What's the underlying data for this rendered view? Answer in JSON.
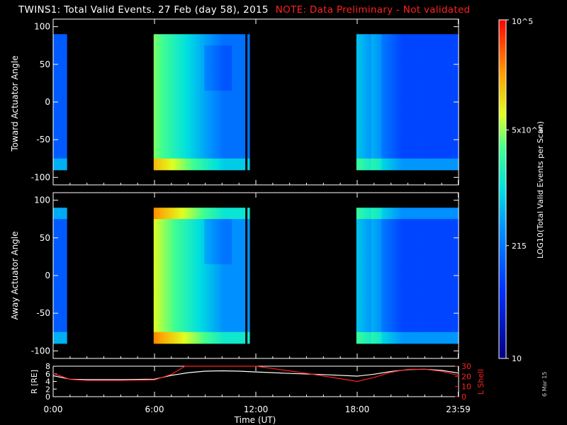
{
  "title": "TWINS1: Total Valid Events. 27 Feb (day  58), 2015",
  "note": "NOTE: Data Preliminary - Not validated",
  "stamp": "6 Mar 15",
  "colors": {
    "background": "#000000",
    "axes": "#ffffff",
    "note": "#ff2020",
    "r_line": "#ffffff",
    "lshell_line": "#ff2020"
  },
  "chart_data": [
    {
      "type": "heatmap",
      "panel": "top",
      "ylabel": "Toward Actuator Angle",
      "ylim": [
        -110,
        110
      ],
      "yticks": [
        100,
        50,
        0,
        -50,
        -100
      ],
      "xlim_hours": [
        0,
        24
      ],
      "coverage_hours": [
        [
          0.0,
          0.8
        ],
        [
          5.95,
          11.35
        ],
        [
          11.5,
          11.62
        ],
        [
          17.95,
          24.0
        ]
      ],
      "colorbar": {
        "label": "LOG10(Total Valid Events per Scan)",
        "scale": "log",
        "range": [
          10,
          100000
        ],
        "tick_labels": [
          "10",
          "215",
          "5x10^3",
          "10^5"
        ]
      }
    },
    {
      "type": "heatmap",
      "panel": "middle",
      "ylabel": "Away Actuator Angle",
      "ylim": [
        -110,
        110
      ],
      "yticks": [
        100,
        50,
        0,
        -50,
        -100
      ],
      "xlim_hours": [
        0,
        24
      ],
      "coverage_hours": [
        [
          0.0,
          0.8
        ],
        [
          5.95,
          11.35
        ],
        [
          11.5,
          11.62
        ],
        [
          17.95,
          24.0
        ]
      ]
    },
    {
      "type": "line",
      "panel": "bottom",
      "xlabel": "Time (UT)",
      "xticks": [
        "0:00",
        "6:00",
        "12:00",
        "18:00",
        "23:59"
      ],
      "ylabel": "R [RE]",
      "ylim": [
        0,
        8
      ],
      "yticks": [
        0,
        2,
        4,
        6,
        8
      ],
      "ylabel_right": "L Shell",
      "ylim_right": [
        0,
        30
      ],
      "yticks_right": [
        0,
        10,
        20,
        30
      ],
      "series": [
        {
          "key": "R",
          "x": [
            0,
            1,
            2,
            4,
            6,
            7,
            8,
            9,
            10,
            11,
            12,
            14,
            16,
            18,
            19,
            20,
            21,
            22,
            23,
            24
          ],
          "y": [
            5.5,
            4.6,
            4.5,
            4.5,
            4.6,
            5.6,
            6.3,
            6.7,
            6.8,
            6.7,
            6.5,
            6.1,
            5.8,
            5.4,
            5.9,
            6.6,
            7.1,
            7.2,
            6.9,
            6.2
          ]
        },
        {
          "key": "L",
          "x": [
            0,
            1,
            2,
            4,
            6,
            7,
            7.8,
            12,
            15,
            18,
            19,
            20,
            21,
            22,
            23,
            24
          ],
          "y": [
            23,
            17,
            16,
            16,
            16.5,
            22,
            30,
            30,
            23,
            15,
            19,
            24,
            27,
            27,
            25,
            21
          ]
        }
      ]
    }
  ]
}
